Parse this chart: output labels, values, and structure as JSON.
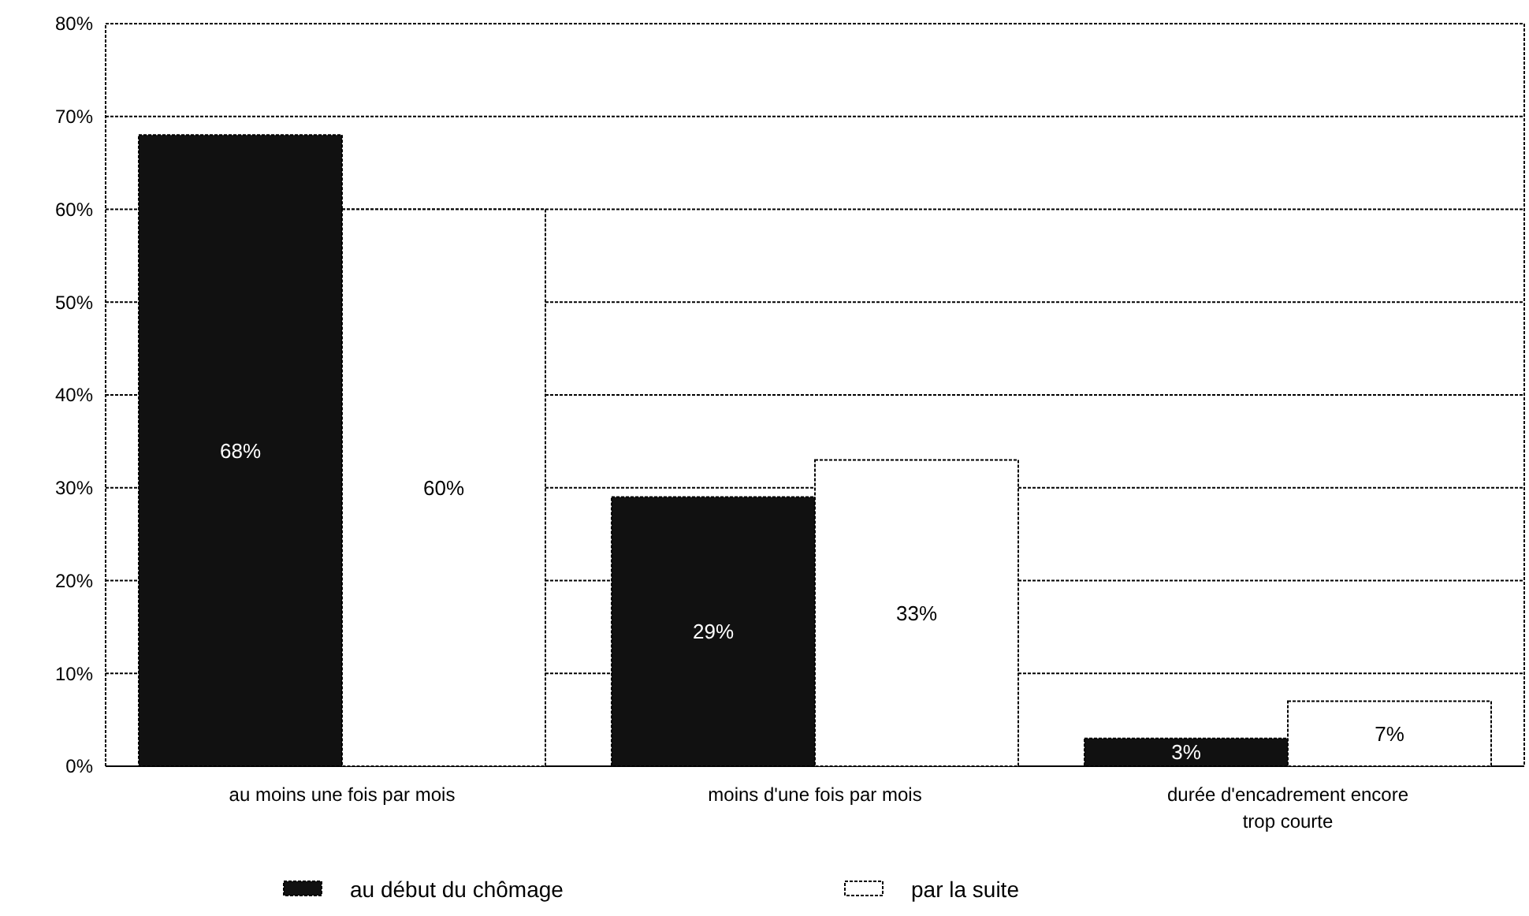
{
  "chart_data": {
    "type": "bar",
    "categories": [
      "au moins une fois par mois",
      "moins d'une fois par mois",
      "durée d'encadrement encore\ntrop courte"
    ],
    "series": [
      {
        "name": "au début du chômage",
        "color": "#111111",
        "values": [
          68,
          29,
          3
        ],
        "value_labels": [
          "68%",
          "29%",
          "3%"
        ]
      },
      {
        "name": "par la suite",
        "color": "#ffffff",
        "values": [
          60,
          33,
          7
        ],
        "value_labels": [
          "60%",
          "33%",
          "7%"
        ]
      }
    ],
    "ylim": [
      0,
      80
    ],
    "yticks": [
      {
        "value": 0,
        "label": "0%"
      },
      {
        "value": 10,
        "label": "10%"
      },
      {
        "value": 20,
        "label": "20%"
      },
      {
        "value": 30,
        "label": "30%"
      },
      {
        "value": 40,
        "label": "40%"
      },
      {
        "value": 50,
        "label": "50%"
      },
      {
        "value": 60,
        "label": "60%"
      },
      {
        "value": 70,
        "label": "70%"
      },
      {
        "value": 80,
        "label": "80%"
      }
    ],
    "grid": "y",
    "legend": "bottom"
  }
}
